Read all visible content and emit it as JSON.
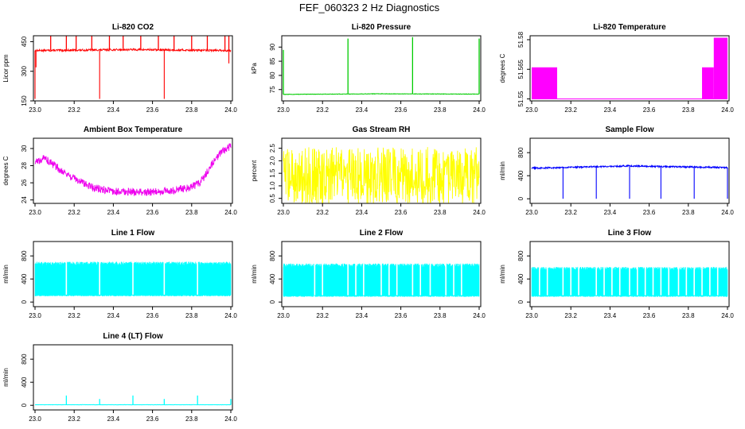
{
  "figure_title": "FEF_060323  2 Hz Diagnostics",
  "chart_data": [
    {
      "id": "co2",
      "type": "line",
      "title": "Li-820 CO2",
      "ylabel": "Licor ppm",
      "xlabel": "",
      "color": "#ff0000",
      "xlim": [
        23.0,
        24.0
      ],
      "ylim": [
        150,
        480
      ],
      "xticks": [
        23.0,
        23.2,
        23.4,
        23.6,
        23.8,
        24.0
      ],
      "xtick_labels": [
        "23.0",
        "23.2",
        "23.4",
        "23.6",
        "23.8",
        "24.0"
      ],
      "yticks": [
        150,
        300,
        450
      ],
      "ytick_labels": [
        "150",
        "300",
        "450"
      ],
      "pattern": "noise-band",
      "baseline": [
        [
          23.0,
          405
        ],
        [
          23.5,
          410
        ],
        [
          24.0,
          405
        ]
      ],
      "band": 10,
      "spikes": [
        [
          23.08,
          478
        ],
        [
          23.16,
          478
        ],
        [
          23.21,
          478
        ],
        [
          23.29,
          478
        ],
        [
          23.38,
          478
        ],
        [
          23.45,
          478
        ],
        [
          23.54,
          478
        ],
        [
          23.63,
          478
        ],
        [
          23.71,
          478
        ],
        [
          23.8,
          478
        ],
        [
          23.88,
          478
        ],
        [
          23.97,
          478
        ],
        [
          23.99,
          478
        ]
      ],
      "dips": [
        [
          23.0,
          160
        ],
        [
          23.33,
          160
        ],
        [
          23.66,
          160
        ],
        [
          23.005,
          320
        ],
        [
          23.99,
          340
        ]
      ]
    },
    {
      "id": "pressure",
      "type": "line",
      "title": "Li-820 Pressure",
      "ylabel": "kPa",
      "xlabel": "",
      "color": "#00cc00",
      "xlim": [
        23.0,
        24.0
      ],
      "ylim": [
        71,
        94
      ],
      "xticks": [
        23.0,
        23.2,
        23.4,
        23.6,
        23.8,
        24.0
      ],
      "xtick_labels": [
        "23.0",
        "23.2",
        "23.4",
        "23.6",
        "23.8",
        "24.0"
      ],
      "yticks": [
        75,
        80,
        85,
        90
      ],
      "ytick_labels": [
        "75",
        "80",
        "85",
        "90"
      ],
      "pattern": "line",
      "baseline": [
        [
          23.0,
          73.3
        ],
        [
          23.5,
          73.5
        ],
        [
          24.0,
          73.4
        ]
      ],
      "band": 0.15,
      "spikes": [
        [
          23.0,
          89
        ],
        [
          23.33,
          93
        ],
        [
          23.66,
          93.5
        ],
        [
          24.0,
          93
        ]
      ]
    },
    {
      "id": "li820temp",
      "type": "area",
      "title": "Li-820 Temperature",
      "ylabel": "degrees C",
      "xlabel": "",
      "color": "#ff00ff",
      "xlim": [
        23.0,
        24.0
      ],
      "ylim": [
        51.549,
        51.582
      ],
      "xticks": [
        23.0,
        23.2,
        23.4,
        23.6,
        23.8,
        24.0
      ],
      "xtick_labels": [
        "23.0",
        "23.2",
        "23.4",
        "23.6",
        "23.8",
        "24.0"
      ],
      "yticks": [
        51.55,
        51.565,
        51.58
      ],
      "ytick_labels": [
        "51.55",
        "51.565",
        "51.58"
      ],
      "pattern": "blocks",
      "floor": 51.55,
      "blocks": [
        [
          23.0,
          23.13,
          51.566
        ],
        [
          23.87,
          23.93,
          51.566
        ],
        [
          23.93,
          24.0,
          51.581
        ]
      ]
    },
    {
      "id": "boxtemp",
      "type": "line",
      "title": "Ambient Box Temperature",
      "ylabel": "degrees C",
      "xlabel": "",
      "color": "#ee00ee",
      "xlim": [
        23.0,
        24.0
      ],
      "ylim": [
        23.6,
        31.2
      ],
      "xticks": [
        23.0,
        23.2,
        23.4,
        23.6,
        23.8,
        24.0
      ],
      "xtick_labels": [
        "23.0",
        "23.2",
        "23.4",
        "23.6",
        "23.8",
        "24.0"
      ],
      "yticks": [
        24,
        26,
        28,
        30
      ],
      "ytick_labels": [
        "24",
        "26",
        "28",
        "30"
      ],
      "pattern": "noise-band",
      "baseline": [
        [
          23.0,
          28.4
        ],
        [
          23.05,
          28.9
        ],
        [
          23.1,
          28.0
        ],
        [
          23.2,
          26.5
        ],
        [
          23.3,
          25.4
        ],
        [
          23.4,
          25.0
        ],
        [
          23.5,
          24.9
        ],
        [
          23.6,
          24.9
        ],
        [
          23.7,
          25.1
        ],
        [
          23.8,
          25.5
        ],
        [
          23.85,
          26.2
        ],
        [
          23.9,
          28.0
        ],
        [
          23.95,
          29.6
        ],
        [
          24.0,
          30.3
        ]
      ],
      "band": 0.9
    },
    {
      "id": "rh",
      "type": "line",
      "title": "Gas Stream RH",
      "ylabel": "percent",
      "xlabel": "",
      "color": "#ffff00",
      "xlim": [
        23.0,
        24.0
      ],
      "ylim": [
        0.3,
        2.9
      ],
      "xticks": [
        23.0,
        23.2,
        23.4,
        23.6,
        23.8,
        24.0
      ],
      "xtick_labels": [
        "23.0",
        "23.2",
        "23.4",
        "23.6",
        "23.8",
        "24.0"
      ],
      "yticks": [
        0.5,
        1.0,
        1.5,
        2.0,
        2.5
      ],
      "ytick_labels": [
        "0.5",
        "1.0",
        "1.5",
        "2.0",
        "2.5"
      ],
      "pattern": "noise-band",
      "baseline": [
        [
          23.0,
          1.4
        ],
        [
          24.0,
          1.4
        ]
      ],
      "band": 2.3
    },
    {
      "id": "sampleflow",
      "type": "line",
      "title": "Sample Flow",
      "ylabel": "ml/min",
      "xlabel": "",
      "color": "#0000ff",
      "xlim": [
        23.0,
        24.0
      ],
      "ylim": [
        -80,
        1050
      ],
      "xticks": [
        23.0,
        23.2,
        23.4,
        23.6,
        23.8,
        24.0
      ],
      "xtick_labels": [
        "23.0",
        "23.2",
        "23.4",
        "23.6",
        "23.8",
        "24.0"
      ],
      "yticks": [
        0,
        400,
        800
      ],
      "ytick_labels": [
        "0",
        "400",
        "800"
      ],
      "pattern": "line",
      "baseline": [
        [
          23.0,
          530
        ],
        [
          23.5,
          570
        ],
        [
          24.0,
          540
        ]
      ],
      "band": 25,
      "dips": [
        [
          23.16,
          0
        ],
        [
          23.33,
          0
        ],
        [
          23.5,
          0
        ],
        [
          23.66,
          0
        ],
        [
          23.83,
          0
        ],
        [
          24.0,
          0
        ]
      ]
    },
    {
      "id": "line1",
      "type": "area",
      "title": "Line 1 Flow",
      "ylabel": "ml/min",
      "xlabel": "",
      "color": "#00ffff",
      "xlim": [
        23.0,
        24.0
      ],
      "ylim": [
        -80,
        1050
      ],
      "xticks": [
        23.0,
        23.2,
        23.4,
        23.6,
        23.8,
        24.0
      ],
      "xtick_labels": [
        "23.0",
        "23.2",
        "23.4",
        "23.6",
        "23.8",
        "24.0"
      ],
      "yticks": [
        0,
        400,
        800
      ],
      "ytick_labels": [
        "0",
        "400",
        "800"
      ],
      "pattern": "fill",
      "low": 100,
      "high": 700,
      "gaps": [
        23.16,
        23.33,
        23.5,
        23.66,
        23.83
      ]
    },
    {
      "id": "line2",
      "type": "area",
      "title": "Line 2 Flow",
      "ylabel": "ml/min",
      "xlabel": "",
      "color": "#00ffff",
      "xlim": [
        23.0,
        24.0
      ],
      "ylim": [
        -80,
        1050
      ],
      "xticks": [
        23.0,
        23.2,
        23.4,
        23.6,
        23.8,
        24.0
      ],
      "xtick_labels": [
        "23.0",
        "23.2",
        "23.4",
        "23.6",
        "23.8",
        "24.0"
      ],
      "yticks": [
        0,
        400,
        800
      ],
      "ytick_labels": [
        "0",
        "400",
        "800"
      ],
      "pattern": "fill",
      "low": 90,
      "high": 670,
      "gaps": [
        23.16,
        23.2,
        23.33,
        23.37,
        23.41,
        23.5,
        23.54,
        23.58,
        23.66,
        23.7,
        23.75,
        23.83,
        23.87,
        23.91
      ]
    },
    {
      "id": "line3",
      "type": "area",
      "title": "Line 3 Flow",
      "ylabel": "ml/min",
      "xlabel": "",
      "color": "#00ffff",
      "xlim": [
        23.0,
        24.0
      ],
      "ylim": [
        -80,
        1050
      ],
      "xticks": [
        23.0,
        23.2,
        23.4,
        23.6,
        23.8,
        24.0
      ],
      "xtick_labels": [
        "23.0",
        "23.2",
        "23.4",
        "23.6",
        "23.8",
        "24.0"
      ],
      "yticks": [
        0,
        400,
        800
      ],
      "ytick_labels": [
        "0",
        "400",
        "800"
      ],
      "pattern": "fill",
      "low": 90,
      "high": 610,
      "gaps": [
        23.04,
        23.08,
        23.16,
        23.2,
        23.24,
        23.33,
        23.37,
        23.41,
        23.45,
        23.5,
        23.54,
        23.58,
        23.62,
        23.66,
        23.7,
        23.75,
        23.79,
        23.83,
        23.87,
        23.91,
        23.95
      ]
    },
    {
      "id": "line4",
      "type": "line",
      "title": "Line 4 (LT) Flow",
      "ylabel": "ml/min",
      "xlabel": "",
      "color": "#00ffff",
      "xlim": [
        23.0,
        24.0
      ],
      "ylim": [
        -80,
        1050
      ],
      "xticks": [
        23.0,
        23.2,
        23.4,
        23.6,
        23.8,
        24.0
      ],
      "xtick_labels": [
        "23.0",
        "23.2",
        "23.4",
        "23.6",
        "23.8",
        "24.0"
      ],
      "yticks": [
        0,
        400,
        800
      ],
      "ytick_labels": [
        "0",
        "400",
        "800"
      ],
      "pattern": "line",
      "baseline": [
        [
          23.0,
          10
        ],
        [
          24.0,
          10
        ]
      ],
      "band": 4,
      "spikes": [
        [
          23.16,
          170
        ],
        [
          23.33,
          110
        ],
        [
          23.5,
          170
        ],
        [
          23.66,
          110
        ],
        [
          23.83,
          170
        ],
        [
          24.0,
          110
        ]
      ]
    }
  ]
}
